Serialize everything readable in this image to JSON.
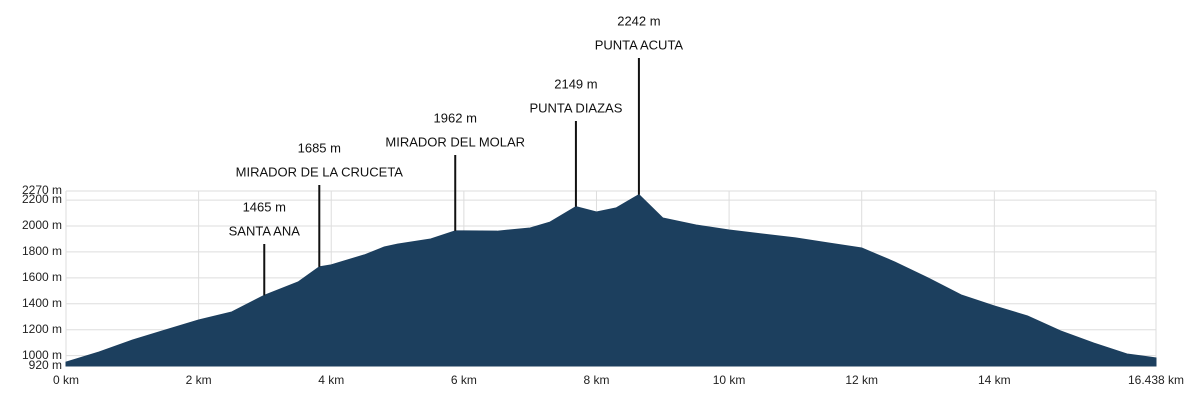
{
  "chart_data": {
    "type": "area",
    "color": "#1c3f5e",
    "grid": true,
    "x": [
      0,
      0.5,
      1,
      1.5,
      2,
      2.5,
      2.99,
      3.5,
      3.82,
      4,
      4.5,
      4.8,
      5,
      5.5,
      5.87,
      6,
      6.5,
      7,
      7.3,
      7.69,
      8,
      8.3,
      8.64,
      9,
      9.5,
      10,
      10.5,
      11,
      11.5,
      12,
      12.5,
      13,
      13.5,
      14,
      14.5,
      15,
      15.5,
      16,
      16.438
    ],
    "values": [
      950,
      1028,
      1120,
      1198,
      1275,
      1337,
      1465,
      1568,
      1685,
      1700,
      1777,
      1838,
      1860,
      1900,
      1962,
      1962,
      1960,
      1985,
      2030,
      2149,
      2108,
      2140,
      2242,
      2062,
      2008,
      1969,
      1938,
      1908,
      1869,
      1830,
      1722,
      1599,
      1468,
      1383,
      1306,
      1190,
      1097,
      1013,
      982
    ],
    "xlim": [
      0,
      16.438
    ],
    "ylim": [
      920,
      2270
    ],
    "xticks": [
      {
        "value": 0,
        "label": "0 km"
      },
      {
        "value": 2,
        "label": "2 km"
      },
      {
        "value": 4,
        "label": "4 km"
      },
      {
        "value": 6,
        "label": "6 km"
      },
      {
        "value": 8,
        "label": "8 km"
      },
      {
        "value": 10,
        "label": "10 km"
      },
      {
        "value": 12,
        "label": "12 km"
      },
      {
        "value": 14,
        "label": "14 km"
      },
      {
        "value": 16.438,
        "label": "16.438 km"
      }
    ],
    "yticks": [
      {
        "value": 920,
        "label": "920 m"
      },
      {
        "value": 1000,
        "label": "1000 m"
      },
      {
        "value": 1200,
        "label": "1200 m"
      },
      {
        "value": 1400,
        "label": "1400 m"
      },
      {
        "value": 1600,
        "label": "1600 m"
      },
      {
        "value": 1800,
        "label": "1800 m"
      },
      {
        "value": 2000,
        "label": "2000 m"
      },
      {
        "value": 2200,
        "label": "2200 m"
      },
      {
        "value": 2270,
        "label": "2270 m"
      }
    ],
    "annotations": {
      "x": [
        2.99,
        3.82,
        5.87,
        7.69,
        8.64
      ],
      "values": [
        1465,
        1685,
        1962,
        2149,
        2242
      ],
      "value_labels": [
        "1465 m",
        "1685 m",
        "1962 m",
        "2149 m",
        "2242 m"
      ],
      "names": [
        "SANTA ANA",
        "MIRADOR DE LA CRUCETA",
        "MIRADOR DEL MOLAR",
        "PUNTA DIAZAS",
        "PUNTA ACUTA"
      ]
    }
  }
}
